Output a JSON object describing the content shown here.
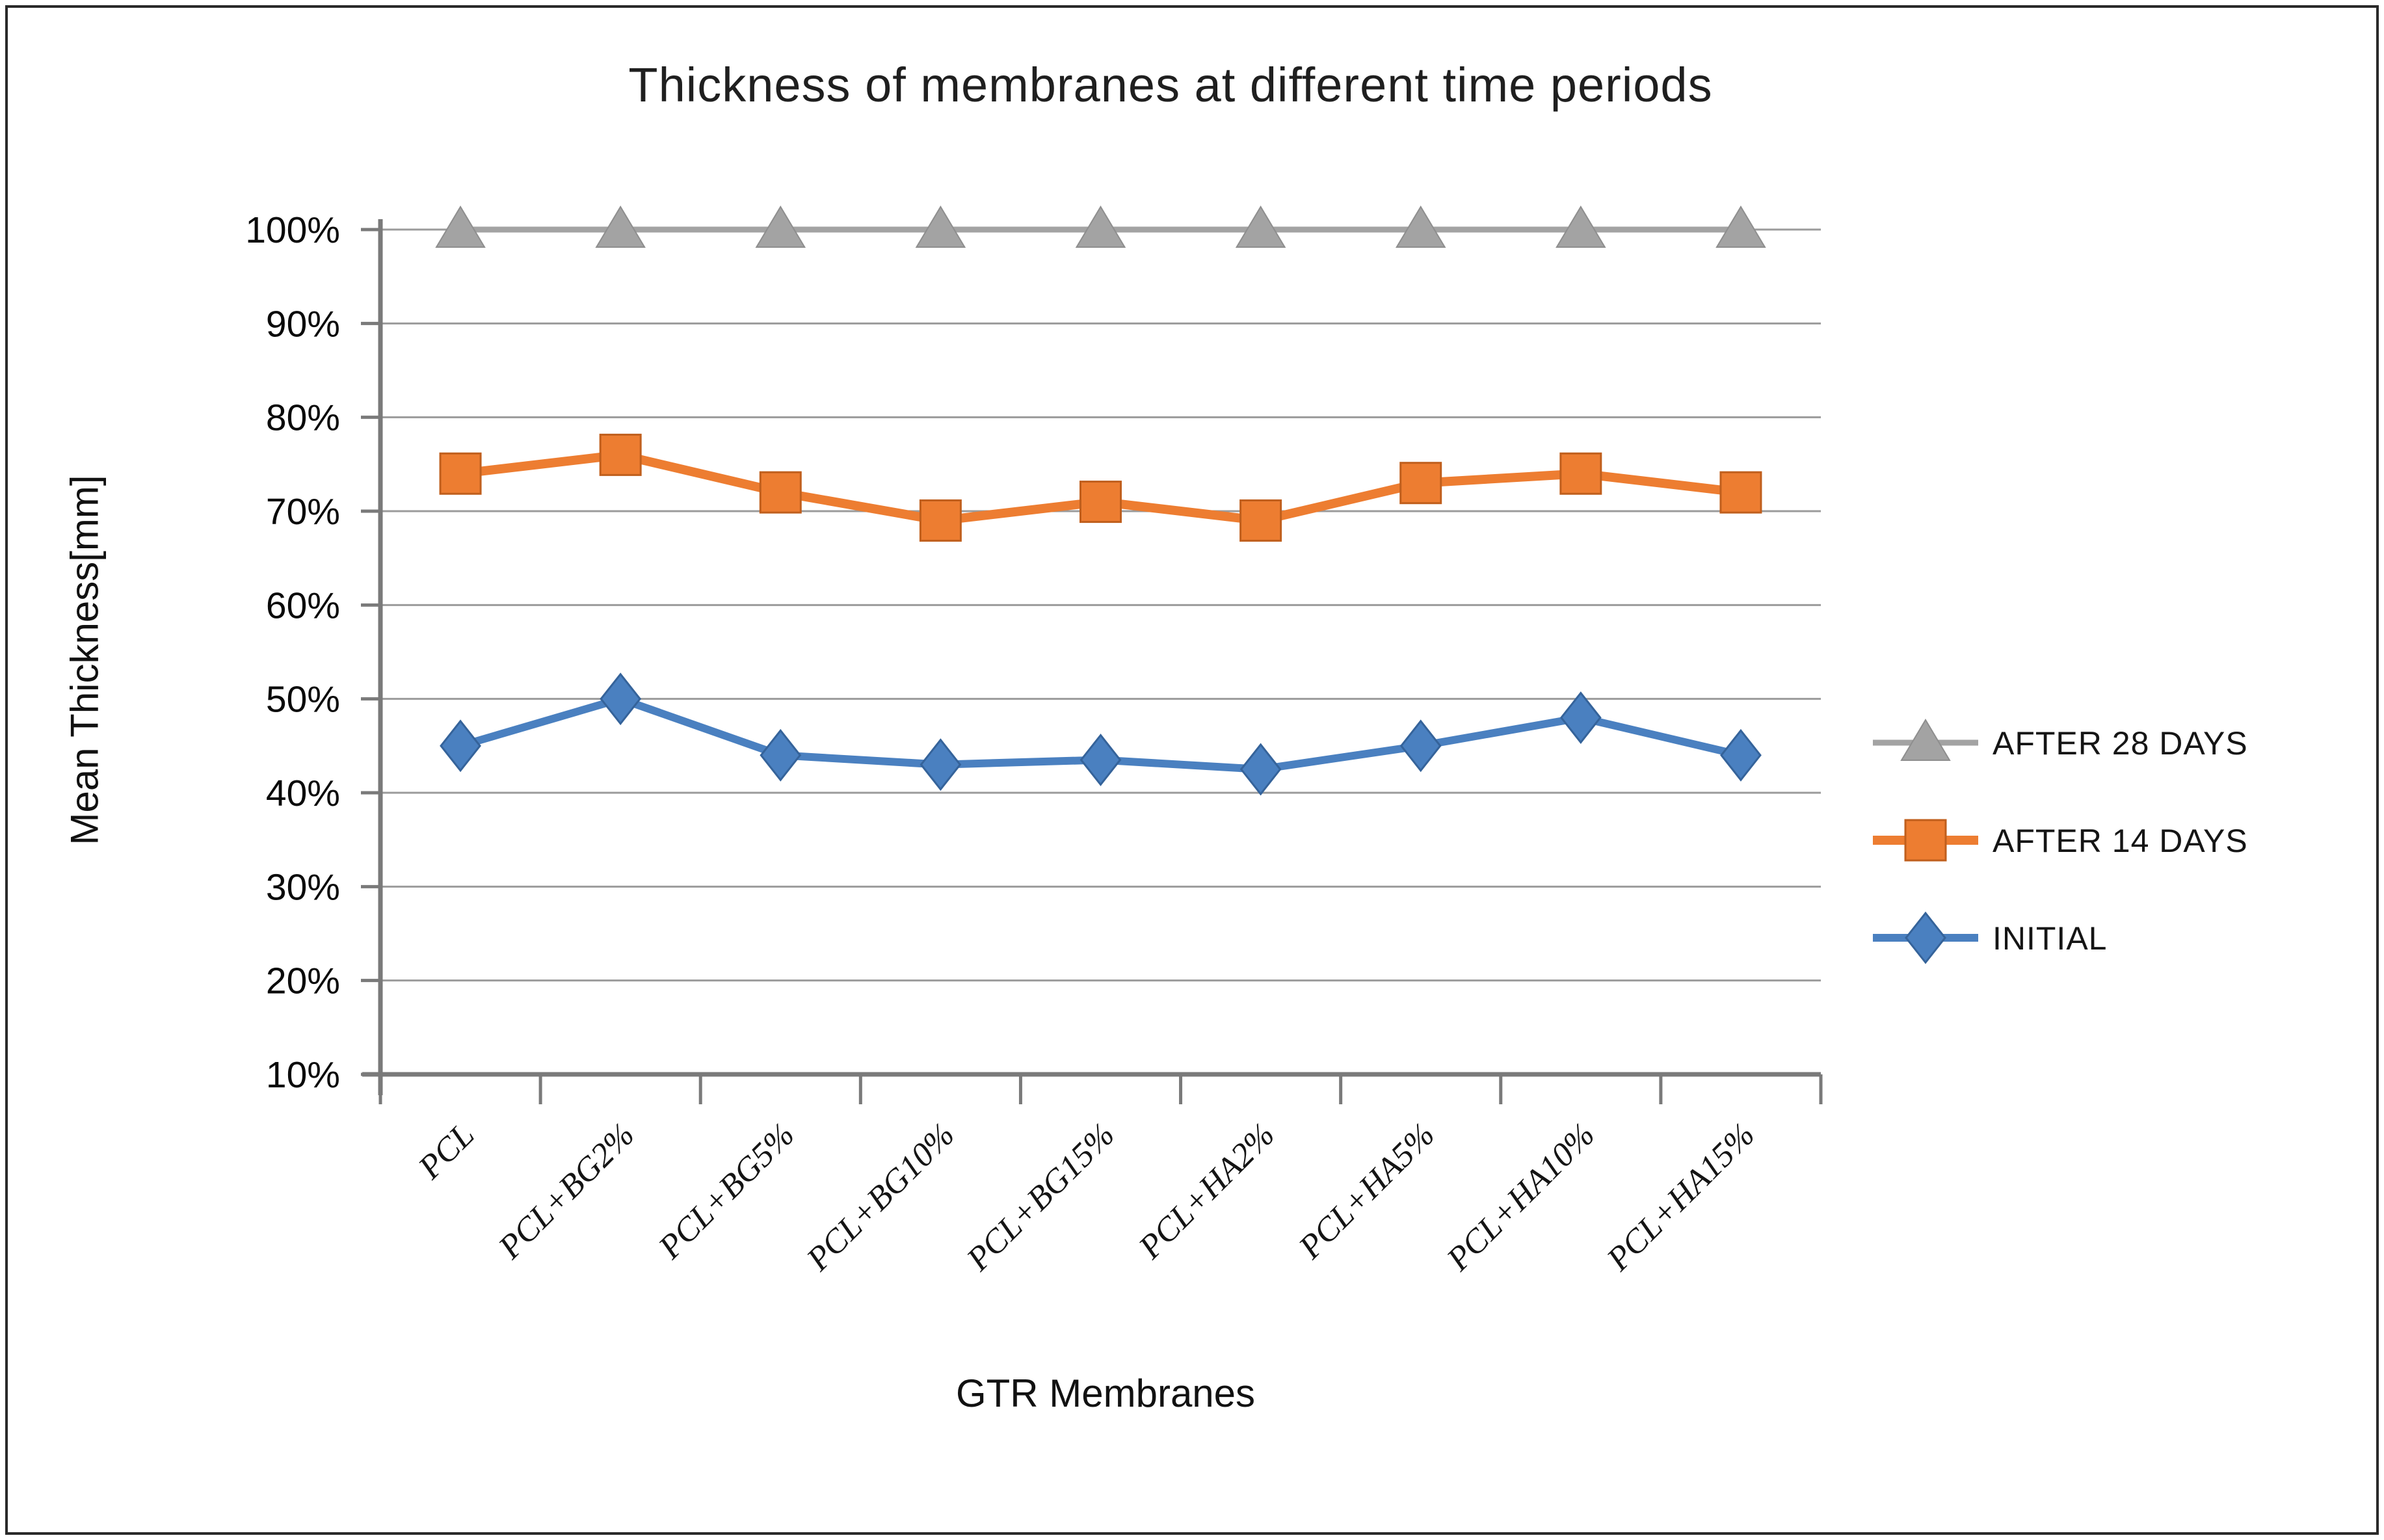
{
  "figure": {
    "title": "Thickness of membranes at different time periods",
    "x_axis_title": "GTR Membranes",
    "y_axis_title": "Mean Thickness[mm]"
  },
  "chart_data": {
    "type": "line",
    "title": "Thickness of membranes at different time periods",
    "xlabel": "GTR Membranes",
    "ylabel": "Mean Thickness[mm]",
    "categories": [
      "PCL",
      "PCL+BG2%",
      "PCL+BG5%",
      "PCL+BG10%",
      "PCL+BG15%",
      "PCL+HA2%",
      "PCL+HA5%",
      "PCL+HA10%",
      "PCL+HA15%"
    ],
    "series": [
      {
        "name": "AFTER 28 DAYS",
        "marker": "triangle",
        "color": "#A3A3A3",
        "marker_stroke": "#8E8E8E",
        "line_width": 9,
        "values": [
          100,
          100,
          100,
          100,
          100,
          100,
          100,
          100,
          100
        ]
      },
      {
        "name": "AFTER 14 DAYS",
        "marker": "square",
        "color": "#ED7D31",
        "marker_stroke": "#C05F1D",
        "line_width": 14,
        "values": [
          74,
          76,
          72,
          69,
          71,
          69,
          73,
          74,
          72
        ]
      },
      {
        "name": "INITIAL",
        "marker": "diamond",
        "color": "#4A80C0",
        "marker_stroke": "#35639A",
        "line_width": 12,
        "values": [
          45,
          50,
          44,
          43,
          43.5,
          42.5,
          45,
          48,
          44
        ]
      }
    ],
    "ylim": [
      10,
      100
    ],
    "y_tick_step": 10,
    "y_tick_labels": [
      "10%",
      "20%",
      "30%",
      "40%",
      "50%",
      "60%",
      "70%",
      "80%",
      "90%",
      "100%"
    ],
    "grid": true,
    "gridline_color": "#9B9B9B",
    "axis_color": "#7A7A7A",
    "legend_position": "right",
    "legend_entries": [
      "AFTER 28 DAYS",
      "AFTER 14 DAYS",
      "INITIAL"
    ]
  }
}
